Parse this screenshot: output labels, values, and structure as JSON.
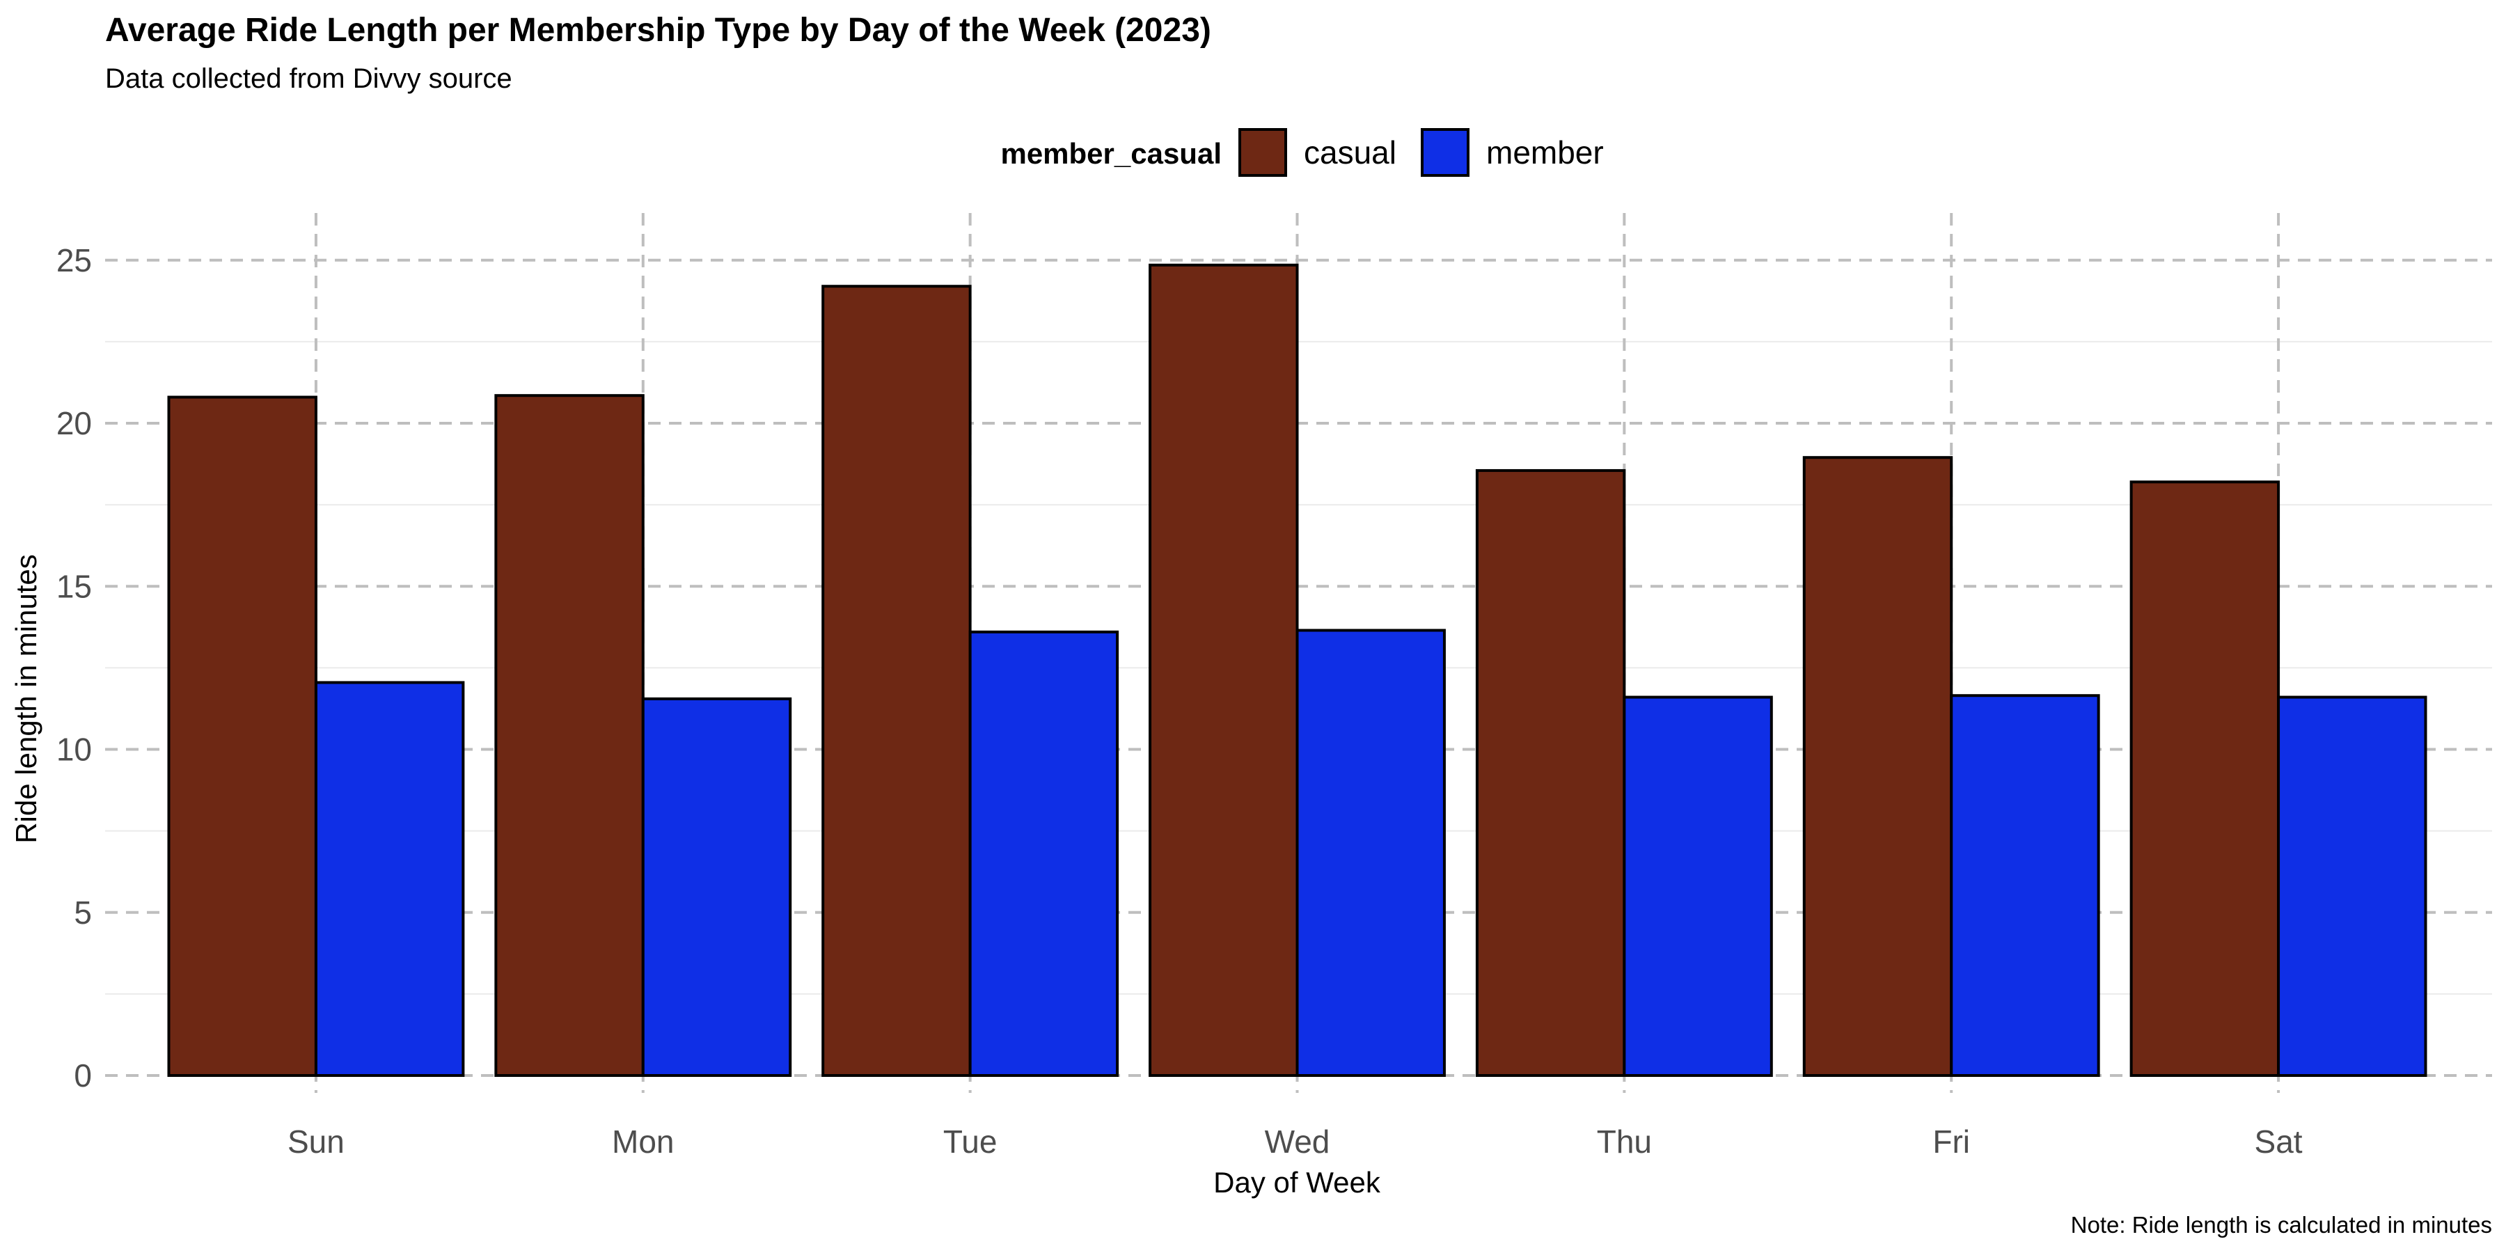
{
  "chart_data": {
    "type": "bar",
    "title": "Average Ride Length per Membership Type by Day of the Week (2023)",
    "subtitle": "Data collected from Divvy source",
    "caption": "Note: Ride length is calculated in minutes",
    "xlabel": "Day of Week",
    "ylabel": "Ride length in minutes",
    "categories": [
      "Sun",
      "Mon",
      "Tue",
      "Wed",
      "Thu",
      "Fri",
      "Sat"
    ],
    "series": [
      {
        "name": "casual",
        "color": "#6E2814",
        "values": [
          20.8,
          20.85,
          24.2,
          24.85,
          18.55,
          18.95,
          18.2
        ]
      },
      {
        "name": "member",
        "color": "#0F2FE6",
        "values": [
          12.05,
          11.55,
          13.6,
          13.65,
          11.6,
          11.65,
          11.6
        ]
      }
    ],
    "ylim": [
      0,
      26.2
    ],
    "yticks": [
      0,
      5,
      10,
      15,
      20,
      25
    ],
    "ytick_labels": [
      "0",
      "5",
      "10",
      "15",
      "20",
      "25"
    ],
    "legend": {
      "title": "member_casual",
      "position": "top"
    },
    "grid": {
      "major": true,
      "major_style": "dashed",
      "minor": true
    },
    "bar_outline_color": "#000000"
  }
}
